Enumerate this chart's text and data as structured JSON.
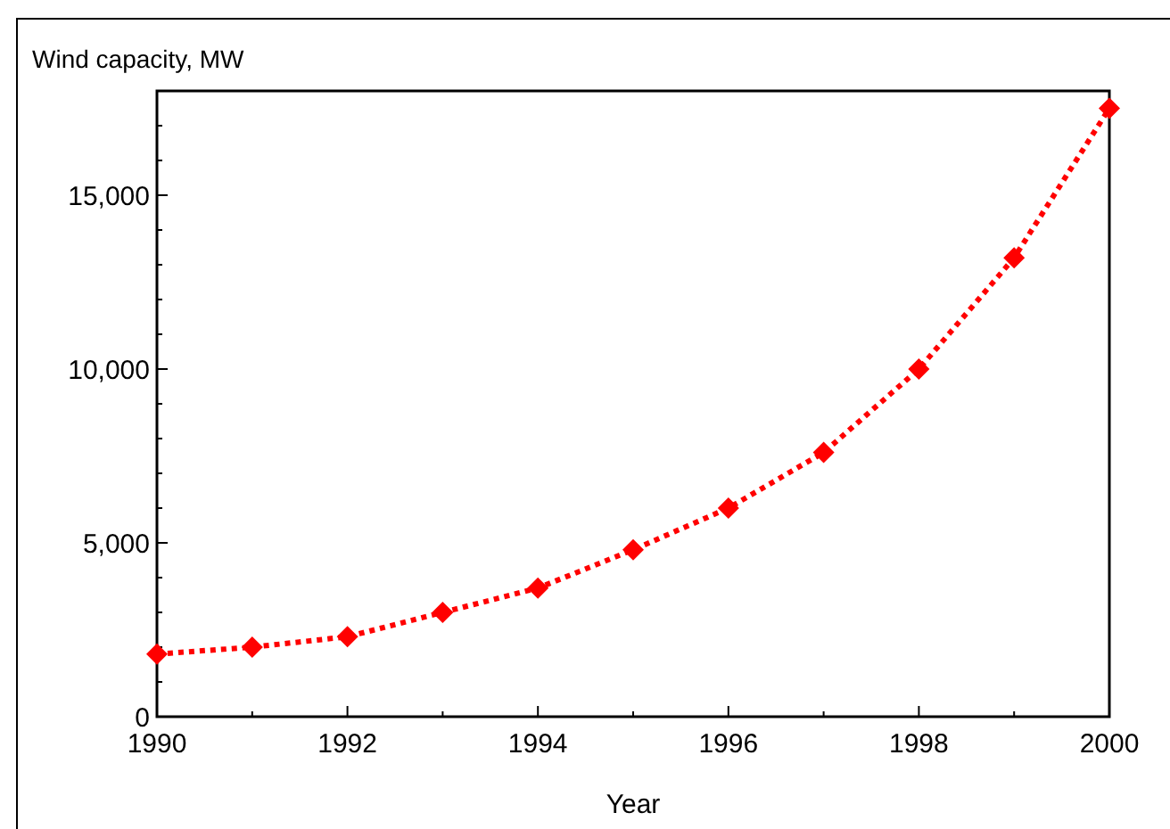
{
  "chart_data": {
    "type": "line",
    "ylabel": "Wind capacity, MW",
    "xlabel": "Year",
    "x": [
      1990,
      1991,
      1992,
      1993,
      1994,
      1995,
      1996,
      1997,
      1998,
      1999,
      2000
    ],
    "series": [
      {
        "color": "#ff0000",
        "values": [
          1800,
          2000,
          2300,
          3000,
          3700,
          4800,
          6000,
          7600,
          10000,
          13200,
          17500
        ]
      }
    ],
    "xlim": [
      1990,
      2000
    ],
    "xticks": [
      1990,
      {
        "value": 1991,
        "label": null
      },
      1992,
      {
        "value": 1993,
        "label": null
      },
      1994,
      {
        "value": 1995,
        "label": null
      },
      1996,
      {
        "value": 1997,
        "label": null
      },
      1998,
      {
        "value": 1999,
        "label": null
      },
      2000
    ],
    "ylim": [
      0,
      18000
    ],
    "yticks": [
      {
        "value": 0,
        "label": "0"
      },
      {
        "value": 1000,
        "label": null
      },
      {
        "value": 2000,
        "label": null
      },
      {
        "value": 3000,
        "label": null
      },
      {
        "value": 4000,
        "label": null
      },
      {
        "value": 5000,
        "label": "5,000"
      },
      {
        "value": 6000,
        "label": null
      },
      {
        "value": 7000,
        "label": null
      },
      {
        "value": 8000,
        "label": null
      },
      {
        "value": 9000,
        "label": null
      },
      {
        "value": 10000,
        "label": "10,000"
      },
      {
        "value": 11000,
        "label": null
      },
      {
        "value": 12000,
        "label": null
      },
      {
        "value": 13000,
        "label": null
      },
      {
        "value": 14000,
        "label": null
      },
      {
        "value": 15000,
        "label": "15,000"
      },
      {
        "value": 16000,
        "label": null
      },
      {
        "value": 17000,
        "label": null
      }
    ],
    "marker": "diamond",
    "line_style": "dotted",
    "grid": false
  }
}
